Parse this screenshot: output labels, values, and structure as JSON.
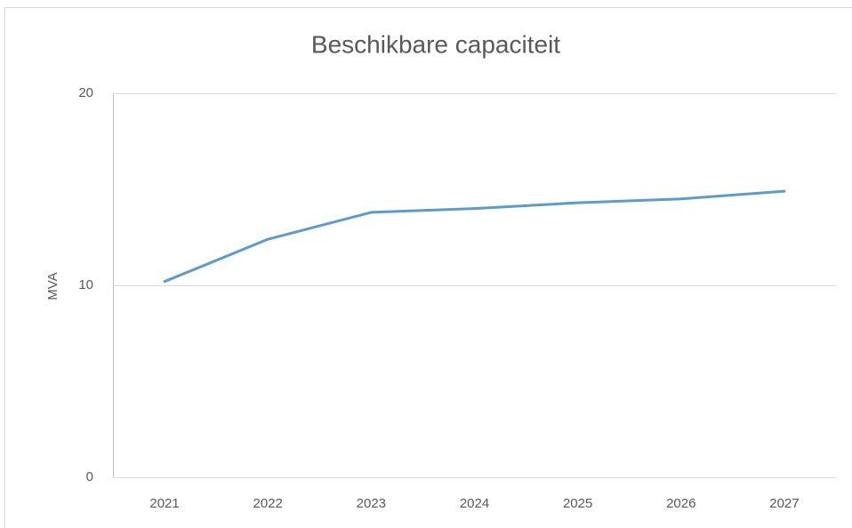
{
  "chart_data": {
    "type": "line",
    "title": "Beschikbare capaciteit",
    "y_label": "MVA",
    "categories": [
      "2021",
      "2022",
      "2023",
      "2024",
      "2025",
      "2026",
      "2027"
    ],
    "series": [
      {
        "name": "Beschikbare capaciteit",
        "color": "#5b9bd5",
        "values": [
          10.2,
          12.4,
          13.8,
          14.0,
          14.3,
          14.5,
          14.9
        ]
      }
    ],
    "ylim": [
      0,
      20
    ],
    "yticks": [
      0,
      10,
      20
    ],
    "grid": true
  }
}
